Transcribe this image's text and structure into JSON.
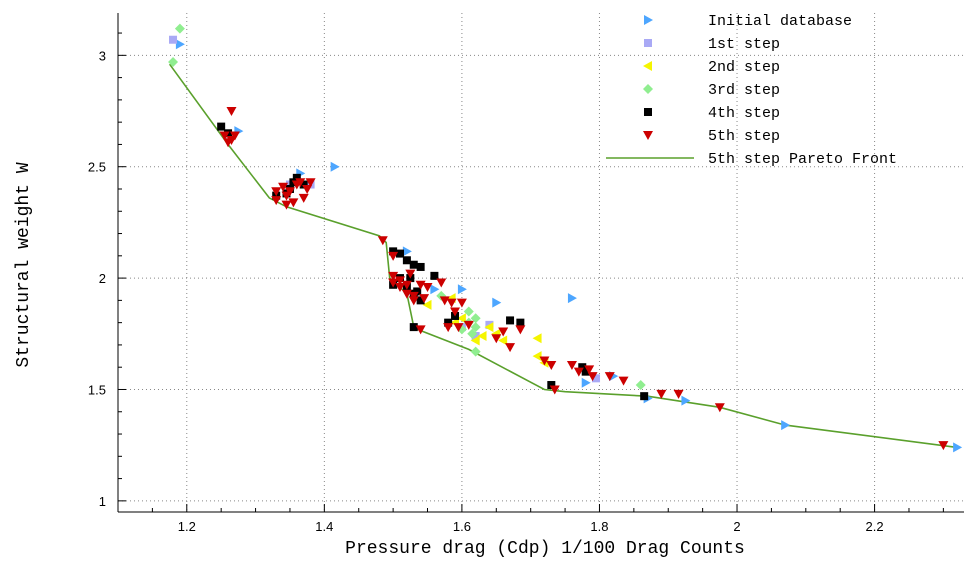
{
  "chart_data": {
    "type": "scatter",
    "xlabel": "Pressure drag (Cdp) 1/100 Drag Counts",
    "ylabel": "Structural weight W",
    "xlim": [
      1.1,
      2.33
    ],
    "ylim": [
      0.95,
      3.19
    ],
    "xticks": [
      {
        "v": 1.2,
        "label": "1.2"
      },
      {
        "v": 1.4,
        "label": "1.4"
      },
      {
        "v": 1.6,
        "label": "1.6"
      },
      {
        "v": 1.8,
        "label": "1.8"
      },
      {
        "v": 2.0,
        "label": "2"
      },
      {
        "v": 2.2,
        "label": "2.2"
      }
    ],
    "yticks": [
      {
        "v": 1.0,
        "label": "1"
      },
      {
        "v": 1.5,
        "label": "1.5"
      },
      {
        "v": 2.0,
        "label": "2"
      },
      {
        "v": 2.5,
        "label": "2.5"
      },
      {
        "v": 3.0,
        "label": "3"
      }
    ],
    "grid": true,
    "legend_position": "top-right",
    "series": [
      {
        "name": "Initial database",
        "marker": "triangle-right",
        "color": "#4da6ff",
        "points": [
          [
            1.19,
            3.05
          ],
          [
            1.275,
            2.66
          ],
          [
            1.365,
            2.47
          ],
          [
            1.415,
            2.5
          ],
          [
            1.52,
            2.12
          ],
          [
            1.6,
            1.95
          ],
          [
            1.65,
            1.89
          ],
          [
            1.76,
            1.91
          ],
          [
            1.78,
            1.53
          ],
          [
            1.82,
            1.56
          ],
          [
            1.87,
            1.46
          ],
          [
            1.925,
            1.45
          ],
          [
            2.07,
            1.34
          ],
          [
            2.32,
            1.24
          ],
          [
            1.56,
            1.95
          ],
          [
            1.35,
            2.4
          ]
        ]
      },
      {
        "name": "1st step",
        "marker": "square",
        "color": "#a9a9f5",
        "points": [
          [
            1.18,
            3.07
          ],
          [
            1.35,
            2.42
          ],
          [
            1.38,
            2.42
          ],
          [
            1.62,
            1.74
          ],
          [
            1.64,
            1.79
          ],
          [
            1.795,
            1.55
          ],
          [
            1.6,
            1.78
          ]
        ]
      },
      {
        "name": "2nd step",
        "marker": "triangle-left",
        "color": "#f5f500",
        "points": [
          [
            1.585,
            1.91
          ],
          [
            1.6,
            1.82
          ],
          [
            1.62,
            1.72
          ],
          [
            1.63,
            1.74
          ],
          [
            1.65,
            1.75
          ],
          [
            1.71,
            1.73
          ],
          [
            1.71,
            1.65
          ],
          [
            1.55,
            1.88
          ],
          [
            1.59,
            1.8
          ],
          [
            1.64,
            1.78
          ],
          [
            1.66,
            1.72
          ],
          [
            1.72,
            1.62
          ]
        ]
      },
      {
        "name": "3rd step",
        "marker": "diamond",
        "color": "#90ee90",
        "points": [
          [
            1.19,
            3.12
          ],
          [
            1.18,
            2.97
          ],
          [
            1.61,
            1.85
          ],
          [
            1.62,
            1.82
          ],
          [
            1.61,
            1.8
          ],
          [
            1.615,
            1.75
          ],
          [
            1.62,
            1.67
          ],
          [
            1.86,
            1.52
          ],
          [
            1.6,
            1.77
          ],
          [
            1.62,
            1.78
          ],
          [
            1.57,
            1.92
          ]
        ]
      },
      {
        "name": "4th step",
        "marker": "square",
        "color": "#000000",
        "points": [
          [
            1.25,
            2.68
          ],
          [
            1.26,
            2.65
          ],
          [
            1.33,
            2.37
          ],
          [
            1.35,
            2.4
          ],
          [
            1.36,
            2.45
          ],
          [
            1.37,
            2.42
          ],
          [
            1.345,
            2.38
          ],
          [
            1.355,
            2.43
          ],
          [
            1.5,
            2.12
          ],
          [
            1.51,
            2.11
          ],
          [
            1.52,
            2.08
          ],
          [
            1.53,
            2.06
          ],
          [
            1.54,
            2.05
          ],
          [
            1.56,
            2.01
          ],
          [
            1.51,
            2.0
          ],
          [
            1.52,
            1.96
          ],
          [
            1.53,
            1.93
          ],
          [
            1.54,
            1.9
          ],
          [
            1.535,
            1.94
          ],
          [
            1.53,
            1.78
          ],
          [
            1.58,
            1.8
          ],
          [
            1.59,
            1.83
          ],
          [
            1.67,
            1.81
          ],
          [
            1.685,
            1.8
          ],
          [
            1.73,
            1.52
          ],
          [
            1.775,
            1.6
          ],
          [
            1.78,
            1.58
          ],
          [
            1.865,
            1.47
          ],
          [
            1.5,
            1.97
          ],
          [
            1.525,
            2.0
          ]
        ]
      },
      {
        "name": "5th step",
        "marker": "triangle-down",
        "color": "#cc0000",
        "points": [
          [
            1.265,
            2.75
          ],
          [
            1.255,
            2.64
          ],
          [
            1.265,
            2.62
          ],
          [
            1.27,
            2.64
          ],
          [
            1.26,
            2.61
          ],
          [
            1.33,
            2.39
          ],
          [
            1.34,
            2.41
          ],
          [
            1.35,
            2.39
          ],
          [
            1.36,
            2.42
          ],
          [
            1.37,
            2.36
          ],
          [
            1.33,
            2.35
          ],
          [
            1.345,
            2.37
          ],
          [
            1.355,
            2.34
          ],
          [
            1.365,
            2.43
          ],
          [
            1.375,
            2.4
          ],
          [
            1.345,
            2.33
          ],
          [
            1.38,
            2.43
          ],
          [
            1.485,
            2.17
          ],
          [
            1.5,
            2.1
          ],
          [
            1.5,
            2.01
          ],
          [
            1.51,
            1.99
          ],
          [
            1.52,
            1.97
          ],
          [
            1.5,
            1.98
          ],
          [
            1.51,
            1.96
          ],
          [
            1.52,
            1.93
          ],
          [
            1.53,
            1.92
          ],
          [
            1.54,
            1.97
          ],
          [
            1.55,
            1.96
          ],
          [
            1.57,
            1.98
          ],
          [
            1.525,
            2.02
          ],
          [
            1.53,
            1.9
          ],
          [
            1.545,
            1.91
          ],
          [
            1.54,
            1.77
          ],
          [
            1.575,
            1.9
          ],
          [
            1.585,
            1.89
          ],
          [
            1.59,
            1.85
          ],
          [
            1.6,
            1.89
          ],
          [
            1.58,
            1.78
          ],
          [
            1.595,
            1.78
          ],
          [
            1.61,
            1.79
          ],
          [
            1.65,
            1.73
          ],
          [
            1.66,
            1.76
          ],
          [
            1.685,
            1.77
          ],
          [
            1.67,
            1.69
          ],
          [
            1.72,
            1.63
          ],
          [
            1.73,
            1.61
          ],
          [
            1.735,
            1.5
          ],
          [
            1.76,
            1.61
          ],
          [
            1.77,
            1.58
          ],
          [
            1.785,
            1.59
          ],
          [
            1.79,
            1.56
          ],
          [
            1.815,
            1.56
          ],
          [
            1.835,
            1.54
          ],
          [
            1.89,
            1.48
          ],
          [
            1.915,
            1.48
          ],
          [
            1.975,
            1.42
          ],
          [
            2.3,
            1.25
          ]
        ]
      },
      {
        "name": "5th step Pareto Front",
        "marker": "line",
        "color": "#5aa02c",
        "points": [
          [
            1.175,
            2.96
          ],
          [
            1.26,
            2.6
          ],
          [
            1.32,
            2.36
          ],
          [
            1.345,
            2.32
          ],
          [
            1.48,
            2.19
          ],
          [
            1.49,
            2.16
          ],
          [
            1.495,
            2.0
          ],
          [
            1.52,
            1.93
          ],
          [
            1.53,
            1.78
          ],
          [
            1.535,
            1.77
          ],
          [
            1.61,
            1.68
          ],
          [
            1.72,
            1.5
          ],
          [
            1.75,
            1.49
          ],
          [
            1.87,
            1.47
          ],
          [
            1.975,
            1.42
          ],
          [
            2.07,
            1.34
          ],
          [
            2.32,
            1.24
          ]
        ]
      }
    ]
  }
}
